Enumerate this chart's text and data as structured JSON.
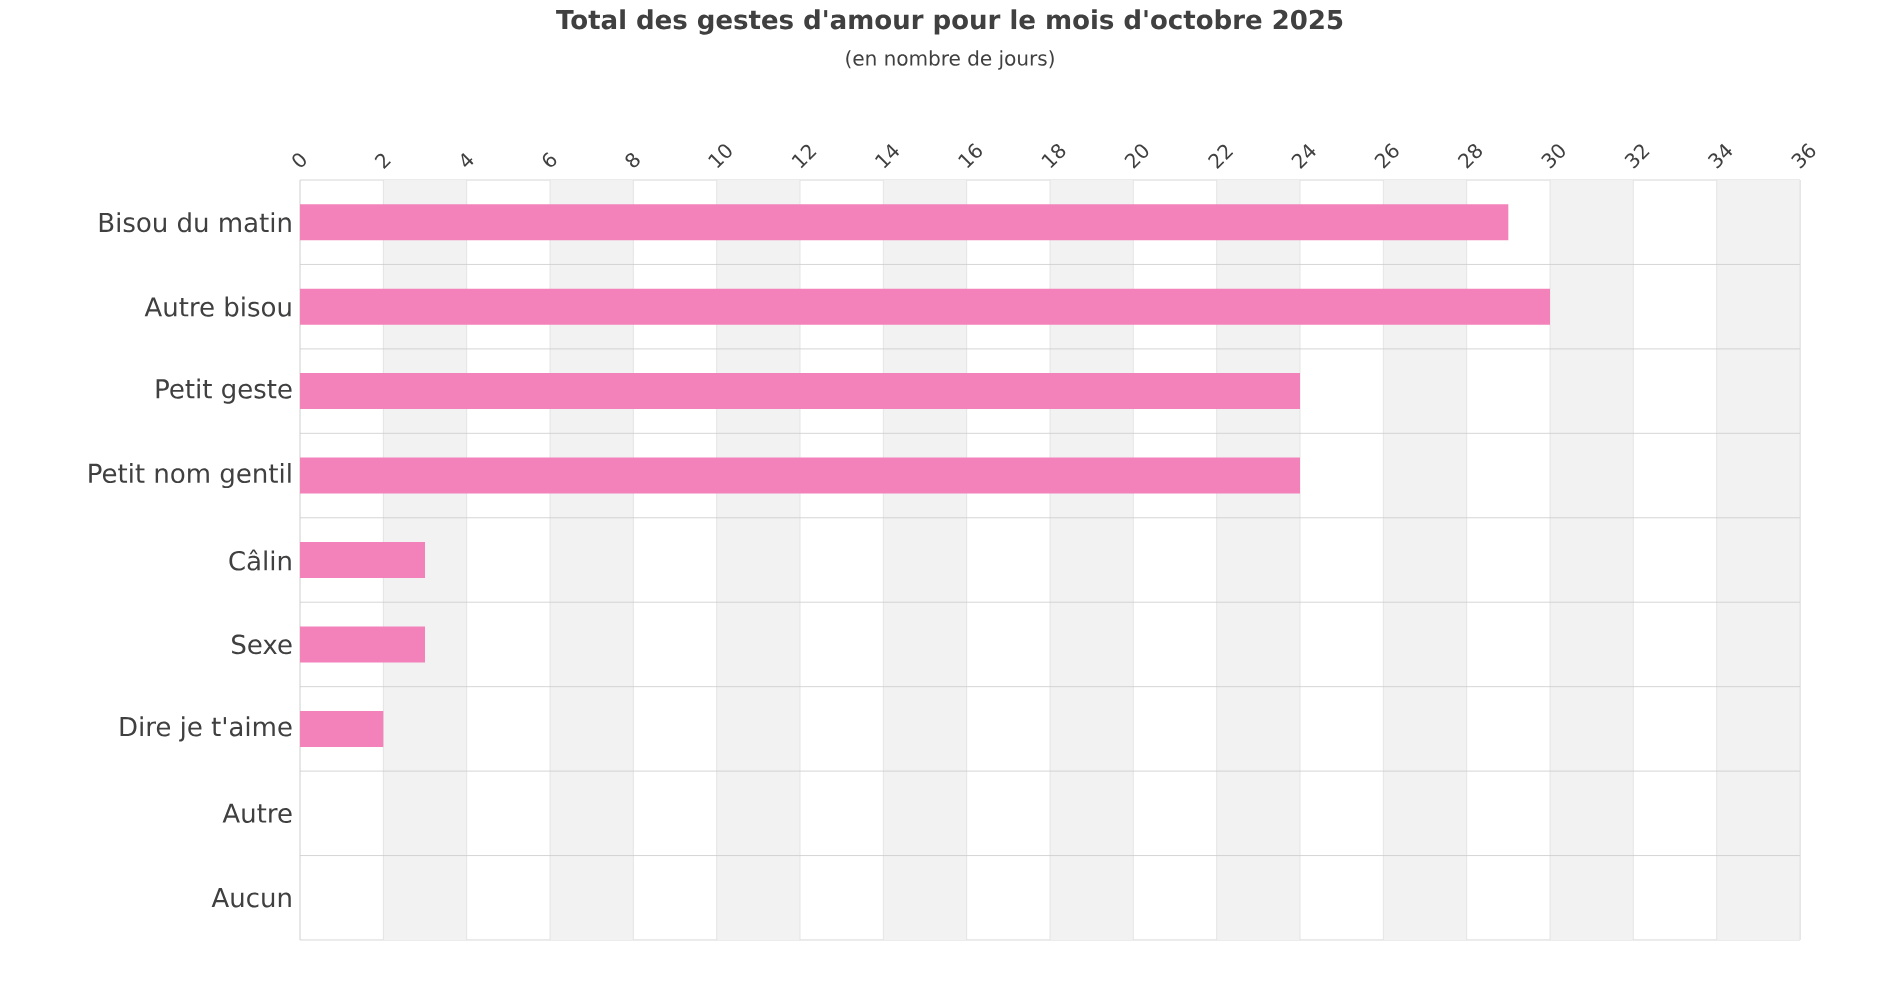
{
  "chart_data": {
    "type": "bar",
    "orientation": "horizontal",
    "title": "Total des gestes d'amour pour le mois d'octobre 2025",
    "subtitle": "(en nombre de jours)",
    "categories": [
      "Bisou du matin",
      "Autre bisou",
      "Petit geste",
      "Petit nom gentil",
      "Câlin",
      "Sexe",
      "Dire je t'aime",
      "Autre",
      "Aucun"
    ],
    "values": [
      29,
      30,
      24,
      24,
      3,
      3,
      2,
      0,
      0
    ],
    "color": "#f282b9",
    "xlim": [
      0,
      36
    ],
    "xticks": [
      0,
      2,
      4,
      6,
      8,
      10,
      12,
      14,
      16,
      18,
      20,
      22,
      24,
      26,
      28,
      30,
      32,
      34,
      36
    ],
    "grid": true
  }
}
